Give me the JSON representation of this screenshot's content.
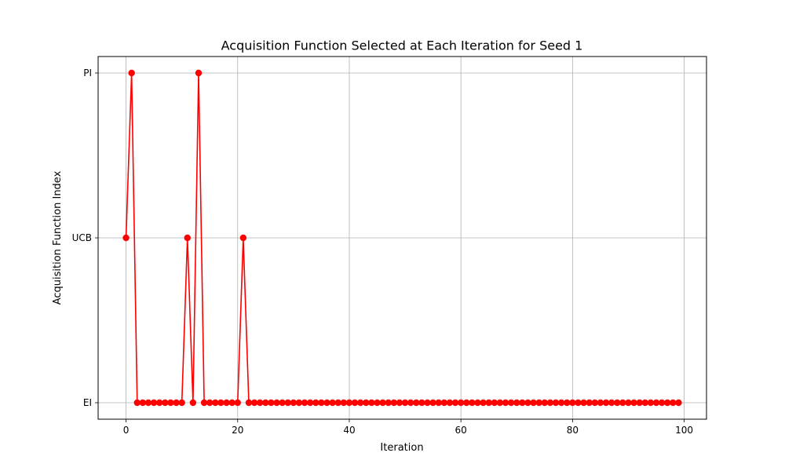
{
  "chart_data": {
    "type": "line",
    "title": "Acquisition Function Selected at Each Iteration for Seed 1",
    "xlabel": "Iteration",
    "ylabel": "Acquisition Function Index",
    "xlim": [
      -5,
      104
    ],
    "ylim": [
      -0.1,
      2.1
    ],
    "xticks": [
      0,
      20,
      40,
      60,
      80,
      100
    ],
    "xtick_labels": [
      "0",
      "20",
      "40",
      "60",
      "80",
      "100"
    ],
    "yticks": [
      0,
      1,
      2
    ],
    "ytick_labels": [
      "EI",
      "UCB",
      "PI"
    ],
    "grid": true,
    "series": [
      {
        "color": "#ff0000",
        "marker": "circle",
        "x": [
          0,
          1,
          2,
          3,
          4,
          5,
          6,
          7,
          8,
          9,
          10,
          11,
          12,
          13,
          14,
          15,
          16,
          17,
          18,
          19,
          20,
          21,
          22,
          23,
          24,
          25,
          26,
          27,
          28,
          29,
          30,
          31,
          32,
          33,
          34,
          35,
          36,
          37,
          38,
          39,
          40,
          41,
          42,
          43,
          44,
          45,
          46,
          47,
          48,
          49,
          50,
          51,
          52,
          53,
          54,
          55,
          56,
          57,
          58,
          59,
          60,
          61,
          62,
          63,
          64,
          65,
          66,
          67,
          68,
          69,
          70,
          71,
          72,
          73,
          74,
          75,
          76,
          77,
          78,
          79,
          80,
          81,
          82,
          83,
          84,
          85,
          86,
          87,
          88,
          89,
          90,
          91,
          92,
          93,
          94,
          95,
          96,
          97,
          98,
          99
        ],
        "y": [
          1,
          2,
          0,
          0,
          0,
          0,
          0,
          0,
          0,
          0,
          0,
          1,
          0,
          2,
          0,
          0,
          0,
          0,
          0,
          0,
          0,
          1,
          0,
          0,
          0,
          0,
          0,
          0,
          0,
          0,
          0,
          0,
          0,
          0,
          0,
          0,
          0,
          0,
          0,
          0,
          0,
          0,
          0,
          0,
          0,
          0,
          0,
          0,
          0,
          0,
          0,
          0,
          0,
          0,
          0,
          0,
          0,
          0,
          0,
          0,
          0,
          0,
          0,
          0,
          0,
          0,
          0,
          0,
          0,
          0,
          0,
          0,
          0,
          0,
          0,
          0,
          0,
          0,
          0,
          0,
          0,
          0,
          0,
          0,
          0,
          0,
          0,
          0,
          0,
          0,
          0,
          0,
          0,
          0,
          0,
          0,
          0,
          0,
          0,
          0
        ]
      }
    ]
  }
}
